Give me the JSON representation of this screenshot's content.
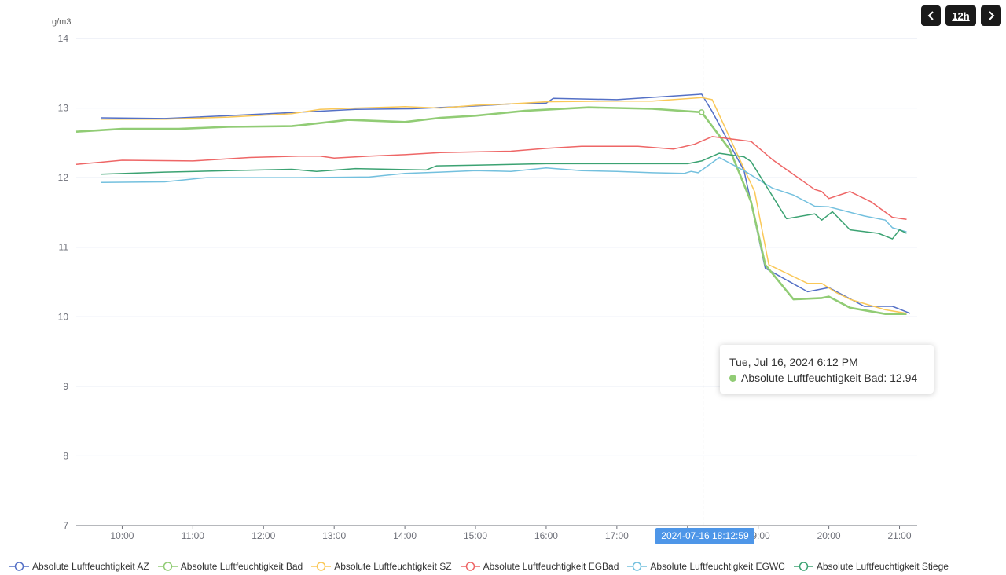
{
  "controls": {
    "prev_icon": "chevron-left-icon",
    "range_label": "12h",
    "next_icon": "chevron-right-icon"
  },
  "tooltip": {
    "title": "Tue, Jul 16, 2024 6:12 PM",
    "series_name": "Absolute Luftfeuchtigkeit Bad",
    "value": "12.94",
    "color": "#91cc75"
  },
  "axis_pointer_label": "2024-07-16 18:12:59",
  "chart_data": {
    "type": "line",
    "ylabel": "g/m3",
    "ylim": [
      7,
      14
    ],
    "y_ticks": [
      "7",
      "8",
      "9",
      "10",
      "11",
      "12",
      "13",
      "14"
    ],
    "x_ticks": [
      "10:00",
      "11:00",
      "12:00",
      "13:00",
      "14:00",
      "15:00",
      "16:00",
      "17:00",
      "18:00",
      "19:00",
      "20:00",
      "21:00"
    ],
    "x_unit": "hours",
    "xlim": [
      9.35,
      21.25
    ],
    "grid": true,
    "legend_position": "bottom",
    "cursor_x": 18.22,
    "highlight": {
      "series": "Absolute Luftfeuchtigkeit Bad",
      "x": 18.2,
      "y": 12.94
    },
    "series": [
      {
        "name": "Absolute Luftfeuchtigkeit AZ",
        "color": "#5470c6",
        "width": 1.5,
        "points": [
          [
            9.7,
            12.86
          ],
          [
            10.6,
            12.85
          ],
          [
            11.5,
            12.89
          ],
          [
            12.5,
            12.94
          ],
          [
            13.3,
            12.98
          ],
          [
            14.1,
            12.99
          ],
          [
            15.0,
            13.03
          ],
          [
            15.5,
            13.06
          ],
          [
            16.0,
            13.07
          ],
          [
            16.1,
            13.14
          ],
          [
            17.0,
            13.12
          ],
          [
            18.2,
            13.2
          ],
          [
            18.35,
            12.95
          ],
          [
            18.8,
            12.1
          ],
          [
            19.1,
            10.7
          ],
          [
            19.7,
            10.36
          ],
          [
            20.0,
            10.42
          ],
          [
            20.5,
            10.15
          ],
          [
            20.9,
            10.15
          ],
          [
            21.15,
            10.05
          ]
        ]
      },
      {
        "name": "Absolute Luftfeuchtigkeit Bad",
        "color": "#91cc75",
        "width": 2.6,
        "points": [
          [
            9.35,
            12.66
          ],
          [
            10.0,
            12.7
          ],
          [
            10.8,
            12.7
          ],
          [
            11.5,
            12.73
          ],
          [
            12.4,
            12.74
          ],
          [
            13.2,
            12.83
          ],
          [
            14.0,
            12.8
          ],
          [
            14.5,
            12.86
          ],
          [
            15.0,
            12.89
          ],
          [
            15.7,
            12.96
          ],
          [
            16.6,
            13.01
          ],
          [
            17.5,
            12.99
          ],
          [
            18.2,
            12.94
          ],
          [
            18.6,
            12.4
          ],
          [
            18.9,
            11.65
          ],
          [
            19.1,
            10.75
          ],
          [
            19.5,
            10.25
          ],
          [
            19.9,
            10.27
          ],
          [
            20.0,
            10.29
          ],
          [
            20.3,
            10.13
          ],
          [
            20.8,
            10.04
          ],
          [
            21.1,
            10.04
          ]
        ]
      },
      {
        "name": "Absolute Luftfeuchtigkeit SZ",
        "color": "#fac858",
        "width": 1.5,
        "points": [
          [
            9.7,
            12.84
          ],
          [
            10.6,
            12.84
          ],
          [
            11.5,
            12.87
          ],
          [
            12.4,
            12.92
          ],
          [
            12.8,
            12.98
          ],
          [
            13.3,
            13.0
          ],
          [
            14.0,
            13.02
          ],
          [
            14.5,
            13.0
          ],
          [
            15.0,
            13.04
          ],
          [
            15.5,
            13.06
          ],
          [
            16.0,
            13.09
          ],
          [
            17.0,
            13.1
          ],
          [
            17.5,
            13.1
          ],
          [
            18.2,
            13.15
          ],
          [
            18.35,
            13.12
          ],
          [
            18.95,
            11.8
          ],
          [
            19.15,
            10.75
          ],
          [
            19.7,
            10.48
          ],
          [
            19.9,
            10.48
          ],
          [
            20.1,
            10.35
          ],
          [
            20.3,
            10.25
          ],
          [
            20.8,
            10.1
          ],
          [
            21.1,
            10.05
          ]
        ]
      },
      {
        "name": "Absolute Luftfeuchtigkeit EGBad",
        "color": "#ee6666",
        "width": 1.5,
        "points": [
          [
            9.35,
            12.19
          ],
          [
            10.0,
            12.25
          ],
          [
            11.0,
            12.24
          ],
          [
            11.8,
            12.29
          ],
          [
            12.5,
            12.31
          ],
          [
            12.8,
            12.31
          ],
          [
            13.0,
            12.28
          ],
          [
            13.5,
            12.31
          ],
          [
            14.0,
            12.33
          ],
          [
            14.5,
            12.36
          ],
          [
            15.5,
            12.38
          ],
          [
            16.0,
            12.42
          ],
          [
            16.5,
            12.45
          ],
          [
            17.3,
            12.45
          ],
          [
            17.8,
            12.41
          ],
          [
            18.1,
            12.48
          ],
          [
            18.35,
            12.59
          ],
          [
            18.9,
            12.52
          ],
          [
            19.2,
            12.26
          ],
          [
            19.8,
            11.83
          ],
          [
            19.9,
            11.8
          ],
          [
            20.0,
            11.7
          ],
          [
            20.3,
            11.8
          ],
          [
            20.6,
            11.65
          ],
          [
            20.9,
            11.43
          ],
          [
            21.1,
            11.4
          ]
        ]
      },
      {
        "name": "Absolute Luftfeuchtigkeit EGWC",
        "color": "#73c0de",
        "width": 1.5,
        "points": [
          [
            9.7,
            11.93
          ],
          [
            10.6,
            11.94
          ],
          [
            11.2,
            12.0
          ],
          [
            12.5,
            12.0
          ],
          [
            13.5,
            12.01
          ],
          [
            14.0,
            12.06
          ],
          [
            14.5,
            12.08
          ],
          [
            15.0,
            12.1
          ],
          [
            15.5,
            12.09
          ],
          [
            16.0,
            12.14
          ],
          [
            16.5,
            12.1
          ],
          [
            17.0,
            12.09
          ],
          [
            17.5,
            12.07
          ],
          [
            17.95,
            12.06
          ],
          [
            18.05,
            12.09
          ],
          [
            18.15,
            12.07
          ],
          [
            18.45,
            12.29
          ],
          [
            18.8,
            12.1
          ],
          [
            19.2,
            11.85
          ],
          [
            19.5,
            11.75
          ],
          [
            19.8,
            11.59
          ],
          [
            20.0,
            11.58
          ],
          [
            20.5,
            11.45
          ],
          [
            20.8,
            11.39
          ],
          [
            20.9,
            11.28
          ],
          [
            21.1,
            11.22
          ]
        ]
      },
      {
        "name": "Absolute Luftfeuchtigkeit Stiege",
        "color": "#3ba272",
        "width": 1.5,
        "points": [
          [
            9.7,
            12.05
          ],
          [
            10.6,
            12.08
          ],
          [
            11.5,
            12.1
          ],
          [
            12.4,
            12.12
          ],
          [
            12.75,
            12.09
          ],
          [
            13.3,
            12.13
          ],
          [
            13.8,
            12.12
          ],
          [
            14.3,
            12.11
          ],
          [
            14.45,
            12.17
          ],
          [
            15.0,
            12.18
          ],
          [
            16.0,
            12.2
          ],
          [
            17.0,
            12.2
          ],
          [
            18.0,
            12.2
          ],
          [
            18.2,
            12.24
          ],
          [
            18.45,
            12.35
          ],
          [
            18.8,
            12.3
          ],
          [
            18.9,
            12.23
          ],
          [
            19.4,
            11.41
          ],
          [
            19.8,
            11.48
          ],
          [
            19.9,
            11.39
          ],
          [
            20.05,
            11.51
          ],
          [
            20.3,
            11.25
          ],
          [
            20.7,
            11.2
          ],
          [
            20.9,
            11.12
          ],
          [
            21.0,
            11.25
          ],
          [
            21.1,
            11.2
          ]
        ]
      }
    ]
  }
}
